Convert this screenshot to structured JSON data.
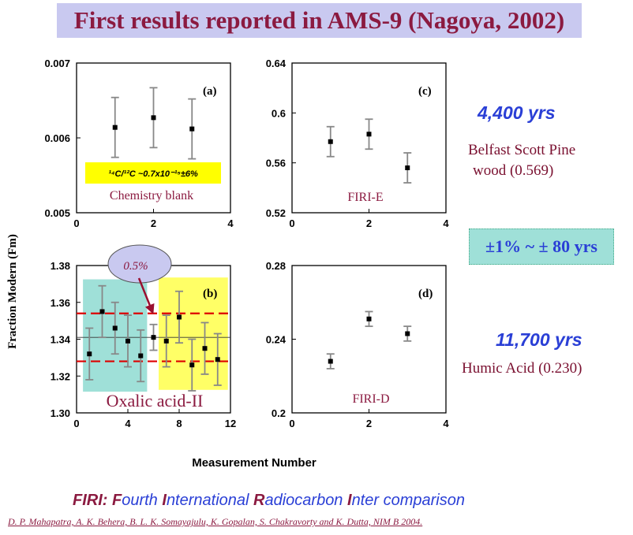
{
  "title": "First results reported in AMS-9 (Nagoya, 2002)",
  "ylabel": "Fraction Modern (Fm)",
  "xlabel": "Measurement Number",
  "side": {
    "age1": "4,400 yrs",
    "sample1_line1": "Belfast Scott Pine",
    "sample1_line2": "wood (0.569)",
    "precision": "±1% ~ ± 80 yrs",
    "age2": "11,700 yrs",
    "sample2": "Humic Acid (0.230)"
  },
  "footer": {
    "firi_label": "FIRI:",
    "firi_parts": [
      [
        "F",
        "ourth "
      ],
      [
        "I",
        "nternational "
      ],
      [
        "R",
        "adiocarbon "
      ],
      [
        "I",
        "nter comparison"
      ]
    ],
    "reference": "D. P. Mahapatra, A. K. Behera, B. L. K. Somayajulu, K. Gopalan, S. Chakravorty and K. Dutta, NIM B 2004."
  },
  "colors": {
    "marker": "#000000",
    "errorbar": "#888888",
    "highlight_green": "#9fe0d8",
    "highlight_yellow": "#ffff66",
    "dashed": "#dd0000",
    "text_red": "#8b1a40",
    "text_blue": "#2a3fd6"
  },
  "chart_data": [
    {
      "panel": "(a)",
      "type": "scatter",
      "sample": "Chemistry blank",
      "annotation": "¹⁴C/¹²C ~0.7x10⁻¹⁵±6%",
      "xlim": [
        0,
        4
      ],
      "xticks": [
        "0",
        "2",
        "4"
      ],
      "ylim": [
        0.005,
        0.007
      ],
      "yticks": [
        "0.005",
        "0.006",
        "0.007"
      ],
      "points": [
        {
          "x": 1,
          "y": 0.00614,
          "err": 0.0004
        },
        {
          "x": 2,
          "y": 0.00627,
          "err": 0.0004
        },
        {
          "x": 3,
          "y": 0.00612,
          "err": 0.0004
        }
      ]
    },
    {
      "panel": "(c)",
      "type": "scatter",
      "sample": "FIRI-E",
      "xlim": [
        0,
        4
      ],
      "xticks": [
        "0",
        "2",
        "4"
      ],
      "ylim": [
        0.52,
        0.64
      ],
      "yticks": [
        "0.52",
        "0.56",
        "0.6",
        "0.64"
      ],
      "points": [
        {
          "x": 1,
          "y": 0.577,
          "err": 0.012
        },
        {
          "x": 2,
          "y": 0.583,
          "err": 0.012
        },
        {
          "x": 3,
          "y": 0.556,
          "err": 0.012
        }
      ]
    },
    {
      "panel": "(b)",
      "type": "scatter",
      "sample": "Oxalic acid-II",
      "callout": "0.5%",
      "xlim": [
        0,
        12
      ],
      "xticks": [
        "0",
        "4",
        "8",
        "12"
      ],
      "ylim": [
        1.3,
        1.38
      ],
      "yticks": [
        "1.30",
        "1.32",
        "1.34",
        "1.36",
        "1.38"
      ],
      "band_lines": [
        1.354,
        1.328
      ],
      "center_line": 1.341,
      "points": [
        {
          "x": 1,
          "y": 1.332,
          "err": 0.014
        },
        {
          "x": 2,
          "y": 1.355,
          "err": 0.014
        },
        {
          "x": 3,
          "y": 1.346,
          "err": 0.014
        },
        {
          "x": 4,
          "y": 1.339,
          "err": 0.014
        },
        {
          "x": 5,
          "y": 1.331,
          "err": 0.014
        },
        {
          "x": 6,
          "y": 1.341,
          "err": 0.007
        },
        {
          "x": 7,
          "y": 1.339,
          "err": 0.014
        },
        {
          "x": 8,
          "y": 1.352,
          "err": 0.014
        },
        {
          "x": 9,
          "y": 1.326,
          "err": 0.014
        },
        {
          "x": 10,
          "y": 1.335,
          "err": 0.014
        },
        {
          "x": 11,
          "y": 1.329,
          "err": 0.014
        }
      ]
    },
    {
      "panel": "(d)",
      "type": "scatter",
      "sample": "FIRI-D",
      "xlim": [
        0,
        4
      ],
      "xticks": [
        "0",
        "2",
        "4"
      ],
      "ylim": [
        0.2,
        0.28
      ],
      "yticks": [
        "0.2",
        "0.24",
        "0.28"
      ],
      "points": [
        {
          "x": 1,
          "y": 0.228,
          "err": 0.004
        },
        {
          "x": 2,
          "y": 0.251,
          "err": 0.004
        },
        {
          "x": 3,
          "y": 0.243,
          "err": 0.004
        }
      ]
    }
  ]
}
